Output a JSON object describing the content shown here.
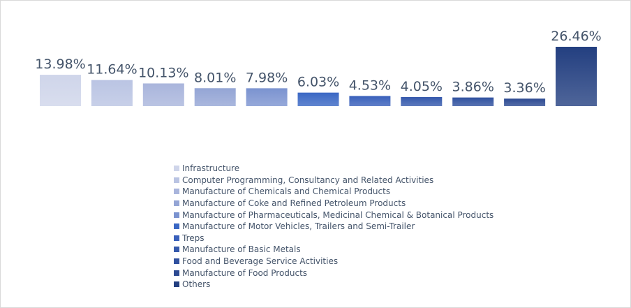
{
  "chart_data": {
    "type": "bar",
    "categories": [
      "Infrastructure",
      "Computer Programming, Consultancy and Related Activities",
      "Manufacture of Chemicals and Chemical Products",
      "Manufacture of Coke and Refined Petroleum Products",
      "Manufacture of Pharmaceuticals, Medicinal Chemical & Botanical Products",
      "Manufacture of Motor Vehicles, Trailers and Semi-Trailer",
      "Treps",
      "Manufacture of Basic Metals",
      "Food and Beverage Service Activities",
      "Manufacture of Food Products",
      "Others"
    ],
    "values": [
      13.98,
      11.64,
      10.13,
      8.01,
      7.98,
      6.03,
      4.53,
      4.05,
      3.86,
      3.36,
      26.46
    ],
    "data_labels": [
      "13.98%",
      "11.64%",
      "10.13%",
      "8.01%",
      "7.98%",
      "6.03%",
      "4.53%",
      "4.05%",
      "3.86%",
      "3.36%",
      "26.46%"
    ],
    "colors": [
      "#cfd5ea",
      "#bac4e3",
      "#a9b5dc",
      "#94a5d5",
      "#7b93d0",
      "#3a67c4",
      "#3960bb",
      "#3559ac",
      "#30519f",
      "#2c4a92",
      "#233f80"
    ],
    "legend_position": "bottom",
    "grid": false,
    "ylim": [
      0,
      27
    ]
  }
}
